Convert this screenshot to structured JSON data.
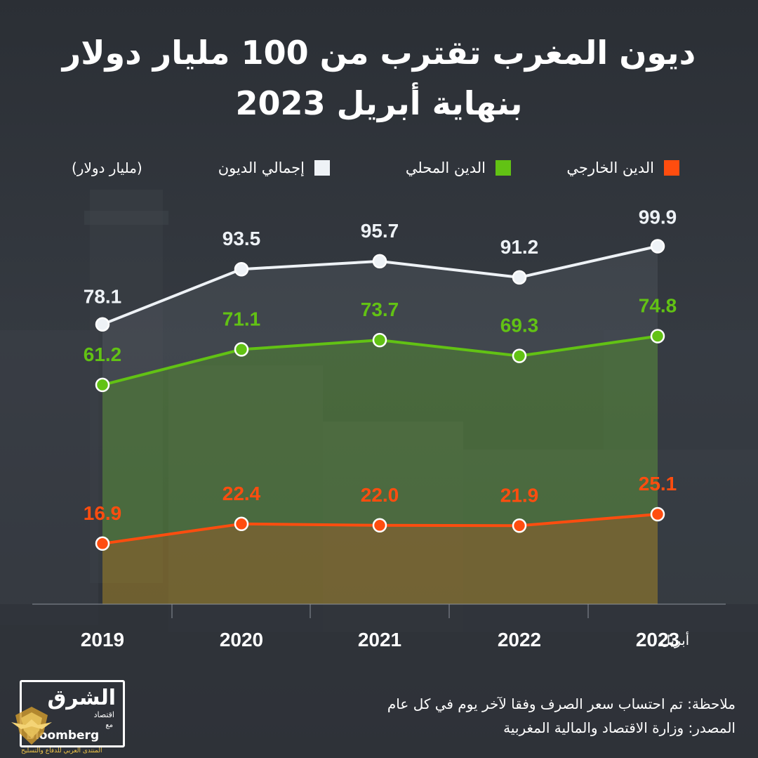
{
  "title": {
    "line1": "ديون المغرب تقترب من 100 مليار دولار",
    "line2": "بنهاية أبريل 2023"
  },
  "legend": {
    "external": "الدين الخارجي",
    "domestic": "الدين المحلي",
    "total": "إجمالي الديون",
    "unit": "(مليار دولار)"
  },
  "colors": {
    "external": "#ff4d0f",
    "domestic": "#62c214",
    "total": "#eef2f6",
    "background": "#2e3238"
  },
  "chart_data": {
    "type": "line",
    "title": "ديون المغرب تقترب من 100 مليار دولار بنهاية أبريل 2023",
    "ylabel": "(مليار دولار)",
    "xlabel": "",
    "categories": [
      "2019",
      "2020",
      "2021",
      "2022",
      "2023"
    ],
    "last_category_prefix": "أبريل",
    "ylim": [
      0,
      110
    ],
    "grid": false,
    "legend_position": "top",
    "series": [
      {
        "name": "إجمالي الديون",
        "key": "total",
        "values_text": [
          "78.1",
          "93.5",
          "95.7",
          "91.2",
          "99.9"
        ],
        "values": [
          78.1,
          93.5,
          95.7,
          91.2,
          99.9
        ]
      },
      {
        "name": "الدين المحلي",
        "key": "domestic",
        "values_text": [
          "61.2",
          "71.1",
          "73.7",
          "69.3",
          "74.8"
        ],
        "values": [
          61.2,
          71.1,
          73.7,
          69.3,
          74.8
        ]
      },
      {
        "name": "الدين الخارجي",
        "key": "external",
        "values_text": [
          "16.9",
          "22.4",
          "22.0",
          "21.9",
          "25.1"
        ],
        "values": [
          16.9,
          22.4,
          22.0,
          21.9,
          25.1
        ]
      }
    ]
  },
  "footer": {
    "note": "ملاحظة: تم احتساب سعر الصرف وفقا لآخر يوم في كل عام",
    "source": "المصدر: وزارة الاقتصاد والمالية المغربية"
  },
  "logo": {
    "brand": "الشرق",
    "sub": "اقتصاد",
    "with": "مع",
    "partner": "Bloomberg"
  },
  "watermark": {
    "text": "المنتدى العربي للدفاع والتسليح"
  }
}
